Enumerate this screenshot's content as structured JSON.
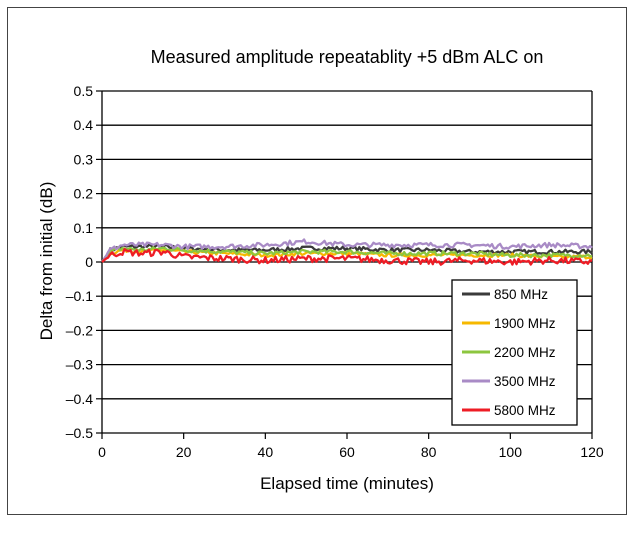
{
  "chart_data": {
    "type": "line",
    "title": "Measured amplitude repeatablity +5 dBm ALC on",
    "xlabel": "Elapsed time (minutes)",
    "ylabel": "Delta from initial (dB)",
    "xlim": [
      0,
      120
    ],
    "ylim": [
      -0.5,
      0.5
    ],
    "xticks": [
      0,
      20,
      40,
      60,
      80,
      100,
      120
    ],
    "yticks": [
      0.5,
      0.4,
      0.3,
      0.2,
      0.1,
      0,
      -0.1,
      -0.2,
      -0.3,
      -0.4,
      -0.5
    ],
    "ytick_labels": [
      "0.5",
      "0.4",
      "0.3",
      "0.2",
      "0.1",
      "0",
      "–0.1",
      "–0.2",
      "–0.3",
      "–0.4",
      "–0.5"
    ],
    "grid": "horizontal",
    "legend_position": "bottom-right",
    "series": [
      {
        "name": "850 MHz",
        "color": "#3a3a3a",
        "x": [
          0,
          2,
          5,
          10,
          15,
          20,
          30,
          40,
          50,
          60,
          70,
          80,
          90,
          100,
          110,
          120
        ],
        "y": [
          0,
          0.035,
          0.045,
          0.045,
          0.045,
          0.04,
          0.035,
          0.035,
          0.04,
          0.04,
          0.035,
          0.035,
          0.03,
          0.03,
          0.03,
          0.03
        ]
      },
      {
        "name": "1900 MHz",
        "color": "#f6b800",
        "x": [
          0,
          2,
          5,
          10,
          15,
          20,
          30,
          40,
          50,
          60,
          70,
          80,
          90,
          100,
          110,
          120
        ],
        "y": [
          0,
          0.025,
          0.035,
          0.03,
          0.035,
          0.03,
          0.025,
          0.02,
          0.025,
          0.025,
          0.02,
          0.02,
          0.02,
          0.02,
          0.015,
          0.015
        ]
      },
      {
        "name": "2200 MHz",
        "color": "#8cc63f",
        "x": [
          0,
          2,
          5,
          10,
          15,
          20,
          30,
          40,
          50,
          60,
          70,
          80,
          90,
          100,
          110,
          120
        ],
        "y": [
          0,
          0.03,
          0.04,
          0.035,
          0.04,
          0.035,
          0.03,
          0.025,
          0.03,
          0.03,
          0.025,
          0.025,
          0.025,
          0.02,
          0.02,
          0.02
        ]
      },
      {
        "name": "3500 MHz",
        "color": "#a98bc6",
        "x": [
          0,
          2,
          5,
          10,
          15,
          20,
          30,
          40,
          45,
          50,
          55,
          60,
          70,
          80,
          90,
          100,
          110,
          120
        ],
        "y": [
          0,
          0.035,
          0.05,
          0.05,
          0.05,
          0.045,
          0.045,
          0.05,
          0.055,
          0.06,
          0.055,
          0.05,
          0.05,
          0.05,
          0.05,
          0.045,
          0.05,
          0.045
        ]
      },
      {
        "name": "5800 MHz",
        "color": "#ee1c25",
        "x": [
          0,
          2,
          5,
          10,
          15,
          20,
          30,
          40,
          50,
          60,
          70,
          80,
          90,
          100,
          110,
          120
        ],
        "y": [
          0,
          0.02,
          0.03,
          0.025,
          0.03,
          0.015,
          0.01,
          0.005,
          0.01,
          0.01,
          0.005,
          0.0,
          0.005,
          0.0,
          0.005,
          0.0
        ]
      }
    ]
  }
}
